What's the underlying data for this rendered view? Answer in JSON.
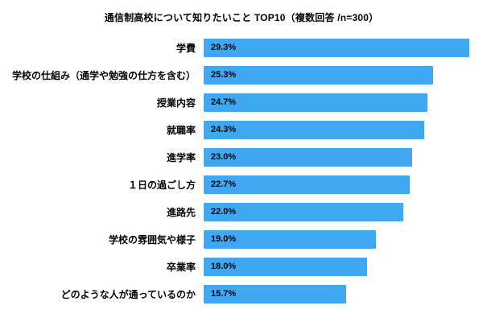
{
  "chart_data": {
    "type": "bar",
    "orientation": "horizontal",
    "title": "通信制高校について知りたいこと TOP10（複数回答 /n=300）",
    "categories": [
      "学費",
      "学校の仕組み（通学や勉強の仕方を含む）",
      "授業内容",
      "就職率",
      "進学率",
      "１日の過ごし方",
      "進路先",
      "学校の雰囲気や様子",
      "卒業率",
      "どのような人が通っているのか"
    ],
    "values": [
      29.3,
      25.3,
      24.7,
      24.3,
      23.0,
      22.7,
      22.0,
      19.0,
      18.0,
      15.7
    ],
    "value_labels": [
      "29.3%",
      "25.3%",
      "24.7%",
      "24.3%",
      "23.0%",
      "22.7%",
      "22.0%",
      "19.0%",
      "18.0%",
      "15.7%"
    ],
    "xlabel": "",
    "ylabel": "",
    "xlim": [
      0,
      30
    ],
    "grid": false,
    "legend": false,
    "value_label_position": "inside-left"
  },
  "colors": {
    "bar": "#3fa8f0",
    "text": "#000000",
    "background": "#ffffff"
  }
}
